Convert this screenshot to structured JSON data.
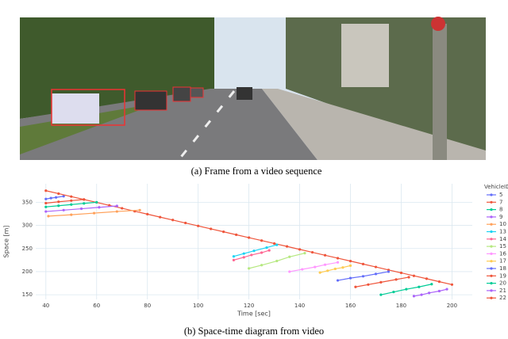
{
  "captions": [
    "(a) Frame from a video sequence",
    "(b) Space-time diagram from video"
  ],
  "chart_data": {
    "type": "line",
    "xlabel": "Time [sec]",
    "ylabel": "Space [m]",
    "legend_title": "VehicleID",
    "legend": "right",
    "grid": true,
    "xlim": [
      36,
      208
    ],
    "ylim": [
      140,
      390
    ],
    "xticks": [
      40,
      60,
      80,
      100,
      120,
      140,
      160,
      180,
      200
    ],
    "yticks": [
      150,
      200,
      250,
      300,
      350
    ],
    "series": [
      {
        "name": "5",
        "color": "#636efa",
        "x": [
          40,
          42,
          44,
          47
        ],
        "values": [
          357,
          359,
          360.5,
          363
        ]
      },
      {
        "name": "7",
        "color": "#ef553b",
        "x": [
          40,
          45,
          50,
          55,
          60,
          65,
          70,
          75,
          80,
          85,
          90,
          95,
          100,
          105,
          110,
          115,
          120,
          125,
          130,
          135,
          140,
          145,
          150,
          155,
          160,
          165,
          170,
          175,
          180,
          185,
          190,
          195,
          200
        ],
        "values": [
          375,
          368.7,
          362.3,
          356,
          349.7,
          343.3,
          337,
          330.6,
          324.3,
          317.9,
          311.6,
          305.2,
          298.9,
          292.5,
          286.2,
          279.8,
          273.5,
          267.2,
          260.8,
          254.5,
          248.1,
          241.8,
          235.4,
          229.1,
          222.8,
          216.4,
          210.1,
          203.7,
          197.4,
          191,
          184.7,
          178.3,
          172
        ]
      },
      {
        "name": "8",
        "color": "#00cc96",
        "x": [
          40,
          45,
          50,
          55,
          60
        ],
        "values": [
          340,
          342.5,
          345,
          347.5,
          350
        ]
      },
      {
        "name": "9",
        "color": "#ab63fa",
        "x": [
          40,
          47,
          54,
          61,
          68
        ],
        "values": [
          330,
          333,
          336,
          339,
          342
        ]
      },
      {
        "name": "10",
        "color": "#ffa15a",
        "x": [
          41,
          50,
          59,
          68,
          77
        ],
        "values": [
          320,
          323,
          326.5,
          330,
          333
        ]
      },
      {
        "name": "13",
        "color": "#19d3f3",
        "x": [
          114,
          118,
          122,
          127,
          131
        ],
        "values": [
          233,
          239,
          245,
          252,
          258
        ]
      },
      {
        "name": "14",
        "color": "#ff6692",
        "x": [
          114,
          118,
          121,
          125,
          128
        ],
        "values": [
          225,
          231,
          236,
          241,
          246
        ]
      },
      {
        "name": "15",
        "color": "#b6e880",
        "x": [
          120,
          125,
          131,
          136,
          142
        ],
        "values": [
          207,
          214,
          223,
          232,
          240
        ]
      },
      {
        "name": "16",
        "color": "#ff97ff",
        "x": [
          136,
          141,
          146,
          150,
          155
        ],
        "values": [
          200,
          205,
          210,
          215,
          220
        ]
      },
      {
        "name": "17",
        "color": "#fecb52",
        "x": [
          148,
          151,
          154,
          157,
          160
        ],
        "values": [
          198,
          202,
          206,
          209,
          213
        ]
      },
      {
        "name": "18",
        "color": "#636efa",
        "x": [
          155,
          160,
          165,
          170,
          175
        ],
        "values": [
          181,
          186,
          190,
          195,
          200
        ]
      },
      {
        "name": "19",
        "color": "#ef553b",
        "x": [
          162,
          167,
          172,
          178,
          183
        ],
        "values": [
          167,
          172,
          177,
          183,
          188
        ]
      },
      {
        "name": "20",
        "color": "#00cc96",
        "x": [
          172,
          177,
          182,
          187,
          192
        ],
        "values": [
          150,
          156,
          162,
          167,
          173
        ]
      },
      {
        "name": "21",
        "color": "#ab63fa",
        "x": [
          185,
          188,
          191,
          195,
          198
        ],
        "values": [
          147,
          150,
          154,
          158,
          162
        ]
      },
      {
        "name": "22",
        "color": "#ef553b",
        "x": [
          40,
          45,
          50,
          55
        ],
        "values": [
          348,
          351,
          353.5,
          356
        ]
      }
    ]
  }
}
